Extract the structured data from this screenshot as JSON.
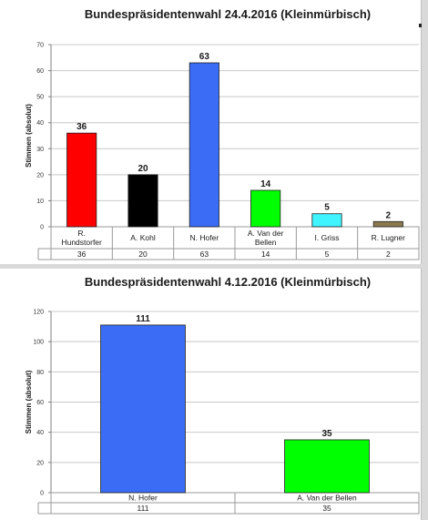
{
  "chart_data": [
    {
      "type": "bar",
      "title": "Bundespräsidentenwahl 24.4.2016 (Kleinmürbisch)",
      "xlabel": "",
      "ylabel": "Stimmen (absolut)",
      "ylim": [
        0,
        70
      ],
      "yticks": [
        0,
        10,
        20,
        30,
        40,
        50,
        60,
        70
      ],
      "categories": [
        [
          "R.",
          "Hundstorfer"
        ],
        [
          "A. Kohl"
        ],
        [
          "N. Hofer"
        ],
        [
          "A. Van der",
          "Bellen"
        ],
        [
          "I. Griss"
        ],
        [
          "R. Lugner"
        ]
      ],
      "values": [
        36,
        20,
        63,
        14,
        5,
        2
      ],
      "colors": [
        "#ff0000",
        "#000000",
        "#3b6cf5",
        "#00ff00",
        "#3ff3ff",
        "#8a7a4e"
      ],
      "grid": true,
      "legend": "none",
      "data_table": true
    },
    {
      "type": "bar",
      "title": "Bundespräsidentenwahl 4.12.2016 (Kleinmürbisch)",
      "xlabel": "",
      "ylabel": "Stimmen (absolut)",
      "ylim": [
        0,
        120
      ],
      "yticks": [
        0,
        20,
        40,
        60,
        80,
        100,
        120
      ],
      "categories": [
        [
          "N. Hofer"
        ],
        [
          "A. Van der Bellen"
        ]
      ],
      "values": [
        111,
        35
      ],
      "colors": [
        "#3b6cf5",
        "#00ff00"
      ],
      "grid": true,
      "legend": "none",
      "data_table": true
    }
  ]
}
